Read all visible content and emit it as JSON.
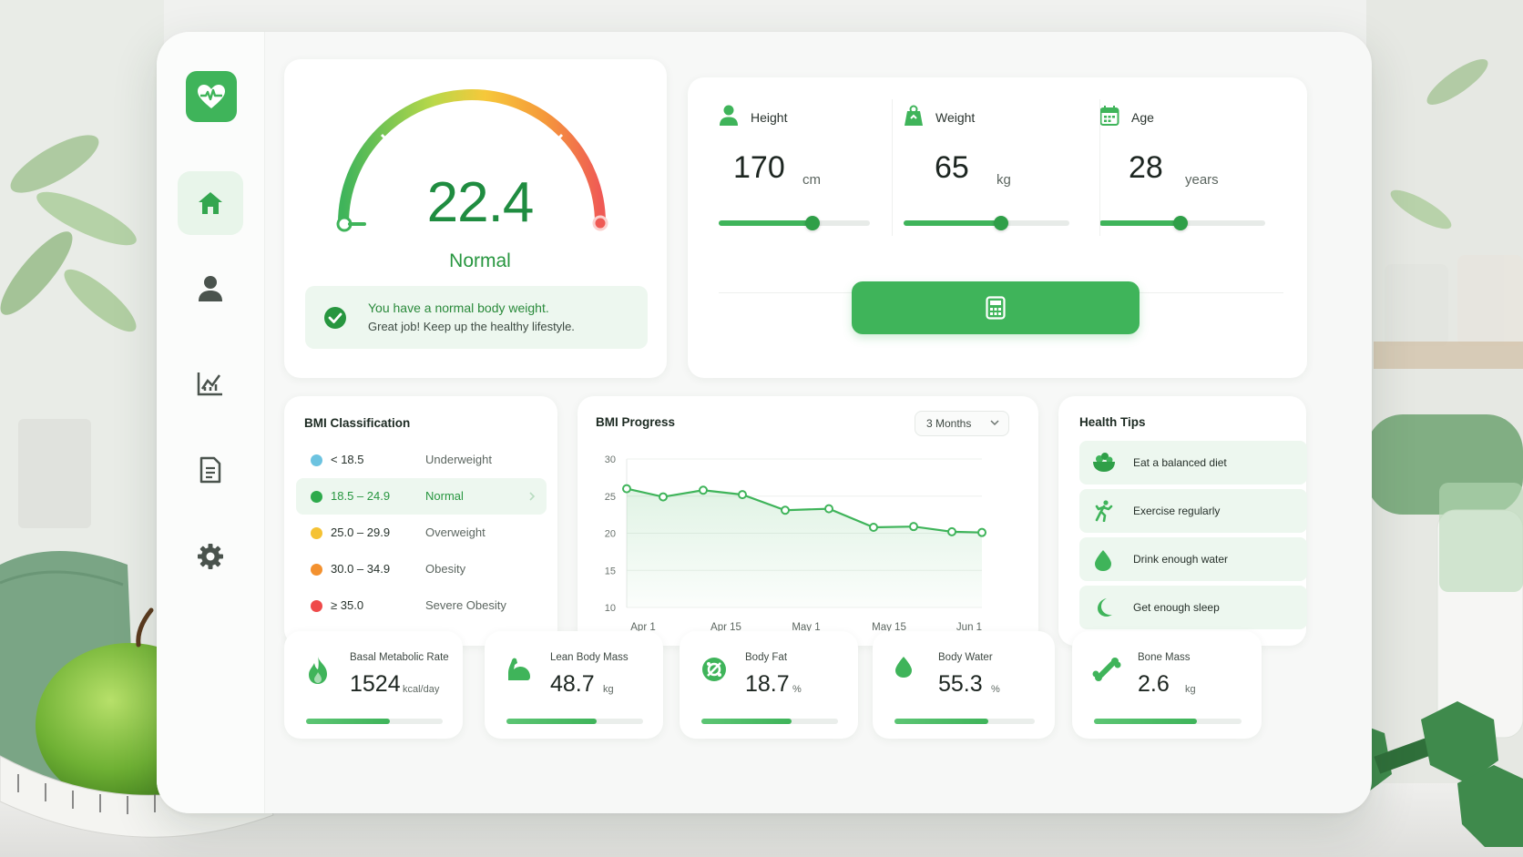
{
  "colors": {
    "accent": "#3fb45a",
    "accent_dark": "#27963f",
    "soft_green": "#edf7ef"
  },
  "sidebar": {
    "logo_icon": "heart-pulse-icon",
    "items": [
      {
        "icon": "home-icon",
        "active": true
      },
      {
        "icon": "user-icon",
        "active": false
      },
      {
        "icon": "chart-icon",
        "active": false
      },
      {
        "icon": "document-icon",
        "active": false
      },
      {
        "icon": "gear-icon",
        "active": false
      }
    ]
  },
  "bmi_result": {
    "value": "22.4",
    "status": "Normal",
    "gauge_fraction": 0.0,
    "message_title": "You have a normal body weight.",
    "message_subtitle": "Great job! Keep up the healthy lifestyle."
  },
  "measurements": [
    {
      "label": "Height",
      "value": "170",
      "unit": "cm",
      "icon": "person-icon",
      "slider_fraction": 0.62
    },
    {
      "label": "Weight",
      "value": "65",
      "unit": "kg",
      "icon": "weight-icon",
      "slider_fraction": 0.59
    },
    {
      "label": "Age",
      "value": "28",
      "unit": "years",
      "icon": "calendar-icon",
      "slider_fraction": 0.49
    }
  ],
  "calculate_button_icon": "calculator-icon",
  "classification": {
    "title": "BMI Classification",
    "rows": [
      {
        "range": "< 18.5",
        "name": "Underweight",
        "color": "#6cc3e0",
        "selected": false
      },
      {
        "range": "18.5 – 24.9",
        "name": "Normal",
        "color": "#2eaa4c",
        "selected": true
      },
      {
        "range": "25.0 – 29.9",
        "name": "Overweight",
        "color": "#f5c233",
        "selected": false
      },
      {
        "range": "30.0 – 34.9",
        "name": "Obesity",
        "color": "#f3912f",
        "selected": false
      },
      {
        "range": "≥ 35.0",
        "name": "Severe Obesity",
        "color": "#ef4a4a",
        "selected": false
      }
    ]
  },
  "progress": {
    "title": "BMI Progress",
    "range_option": "3 Months"
  },
  "chart_data": {
    "type": "line",
    "title": "BMI Progress",
    "x_tick_labels": [
      "Apr 1",
      "Apr 15",
      "May 1",
      "May 15",
      "Jun 1"
    ],
    "y_ticks": [
      10,
      15,
      20,
      25,
      30
    ],
    "ylim": [
      10,
      30
    ],
    "grid": true,
    "series": [
      {
        "values": [
          26.0,
          24.9,
          25.8,
          25.2,
          23.1,
          23.3,
          20.8,
          20.9,
          20.2,
          20.1
        ]
      }
    ]
  },
  "tips": {
    "title": "Health Tips",
    "items": [
      {
        "label": "Eat a balanced diet",
        "icon": "salad-bowl-icon"
      },
      {
        "label": "Exercise regularly",
        "icon": "running-icon"
      },
      {
        "label": "Drink enough water",
        "icon": "water-drop-icon"
      },
      {
        "label": "Get enough sleep",
        "icon": "moon-icon"
      }
    ]
  },
  "metrics": [
    {
      "label": "Basal Metabolic Rate",
      "value": "1524",
      "unit": "kcal/day",
      "icon": "flame-icon",
      "fraction": 0.61
    },
    {
      "label": "Lean Body Mass",
      "value": "48.7",
      "unit": "kg",
      "icon": "muscle-icon",
      "fraction": 0.66
    },
    {
      "label": "Body Fat",
      "value": "18.7",
      "unit": "%",
      "icon": "body-fat-icon",
      "fraction": 0.66
    },
    {
      "label": "Body Water",
      "value": "55.3",
      "unit": "%",
      "icon": "water-drop-icon",
      "fraction": 0.67
    },
    {
      "label": "Bone Mass",
      "value": "2.6",
      "unit": "kg",
      "icon": "bone-icon",
      "fraction": 0.7
    }
  ]
}
